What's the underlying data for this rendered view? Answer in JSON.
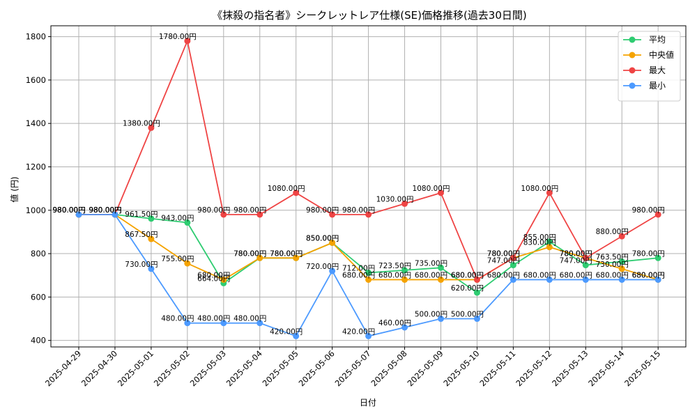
{
  "chart_data": {
    "type": "line",
    "title": "《抹殺の指名者》シークレットレア仕様(SE)価格推移(過去30日間)",
    "xlabel": "日付",
    "ylabel": "値 (円)",
    "ylim": [
      370,
      1850
    ],
    "yticks": [
      400,
      600,
      800,
      1000,
      1200,
      1400,
      1600,
      1800
    ],
    "grid": true,
    "legend_position": "top-right",
    "label_suffix": "円",
    "x": [
      "2025-04-29",
      "2025-04-30",
      "2025-05-01",
      "2025-05-02",
      "2025-05-03",
      "2025-05-04",
      "2025-05-05",
      "2025-05-06",
      "2025-05-07",
      "2025-05-08",
      "2025-05-09",
      "2025-05-10",
      "2025-05-11",
      "2025-05-12",
      "2025-05-13",
      "2025-05-14",
      "2025-05-15"
    ],
    "series": [
      {
        "name": "平均",
        "color": "#2ecc71",
        "values": [
          980,
          980,
          961.5,
          943,
          664,
          780,
          780,
          850,
          712,
          723.5,
          735,
          620,
          747,
          855,
          747,
          763.5,
          780
        ]
      },
      {
        "name": "中央値",
        "color": "#f5a300",
        "values": [
          980,
          980,
          867.5,
          755,
          680,
          780,
          780,
          850,
          680,
          680,
          680,
          680,
          780,
          830,
          780,
          730,
          680
        ]
      },
      {
        "name": "最大",
        "color": "#ef4444",
        "values": [
          980,
          980,
          1380,
          1780,
          980,
          980,
          1080,
          980,
          980,
          1030,
          1080,
          680,
          780,
          1080,
          780,
          880,
          980
        ]
      },
      {
        "name": "最小",
        "color": "#4c9aff",
        "values": [
          980,
          980,
          730,
          480,
          480,
          480,
          420,
          720,
          420,
          460,
          500,
          500,
          680,
          680,
          680,
          680,
          680
        ]
      }
    ]
  }
}
